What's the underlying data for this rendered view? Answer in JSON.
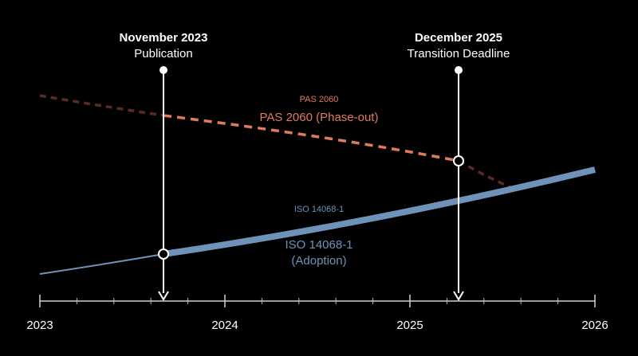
{
  "colors": {
    "background": "#000000",
    "foreground": "#ffffff",
    "pas": "#e07a5f",
    "pas_faded": "#5a2a24",
    "iso": "#6f93b8"
  },
  "events": [
    {
      "title": "November 2023",
      "subtitle": "Publication",
      "date": 2023.66
    },
    {
      "title": "December 2025",
      "subtitle": "Transition Deadline",
      "date": 2025.26
    }
  ],
  "axis": {
    "ticks": [
      "2023",
      "2024",
      "2025",
      "2026"
    ]
  },
  "pas": {
    "small_label": "PAS 2060",
    "label": "PAS 2060 (Phase-out)"
  },
  "iso": {
    "small_label": "ISO 14068-1",
    "label_line1": "ISO 14068-1",
    "label_line2": "(Adoption)"
  }
}
